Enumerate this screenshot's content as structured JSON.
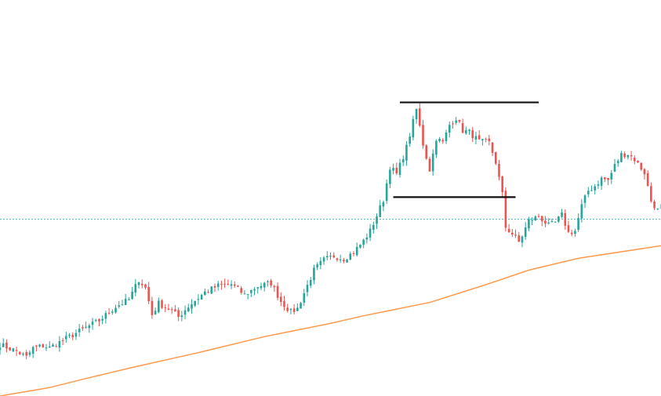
{
  "chart_data": {
    "type": "candlestick",
    "title": "",
    "xlabel": "",
    "ylabel": "",
    "grid": false,
    "legend": "none",
    "ylim": [
      0,
      100
    ],
    "colors": {
      "up": "#26a69a",
      "down": "#ef5350",
      "moving_average": "#ff9a4d",
      "reference_line": "#4fb8c4",
      "drawn_lines": "#111111",
      "background": "#ffffff"
    },
    "reference_line": {
      "value": 46.5,
      "style": "dotted"
    },
    "moving_average": [
      [
        0,
        0.0
      ],
      [
        15,
        2.2
      ],
      [
        25,
        4.4
      ],
      [
        40,
        7.5
      ],
      [
        60,
        11.4
      ],
      [
        80,
        15.6
      ],
      [
        100,
        19.1
      ],
      [
        110,
        21.1
      ],
      [
        130,
        24.6
      ],
      [
        146,
        29.0
      ],
      [
        160,
        33.1
      ],
      [
        175,
        36.2
      ],
      [
        200,
        39.5
      ]
    ],
    "drawn_lines": [
      {
        "name": "resistance",
        "x_start": 121,
        "x_end": 163,
        "value": 77.2
      },
      {
        "name": "support",
        "x_start": 119,
        "x_end": 156,
        "value": 52.3
      }
    ],
    "ohlc_keypoints": [
      [
        0,
        13.5
      ],
      [
        5,
        11.8
      ],
      [
        8,
        10.2
      ],
      [
        10,
        12.6
      ],
      [
        13,
        13.2
      ],
      [
        15,
        12.7
      ],
      [
        20,
        15.1
      ],
      [
        25,
        17.5
      ],
      [
        30,
        19.8
      ],
      [
        35,
        23.5
      ],
      [
        39,
        25.3
      ],
      [
        42,
        30.6
      ],
      [
        44,
        28.4
      ],
      [
        46,
        21.4
      ],
      [
        48,
        24.4
      ],
      [
        52,
        22.4
      ],
      [
        54,
        20.8
      ],
      [
        57,
        23.6
      ],
      [
        62,
        27.3
      ],
      [
        66,
        29.0
      ],
      [
        70,
        29.4
      ],
      [
        74,
        26.6
      ],
      [
        78,
        28.9
      ],
      [
        82,
        29.7
      ],
      [
        85,
        24.9
      ],
      [
        88,
        22.1
      ],
      [
        90,
        23.0
      ],
      [
        92,
        27.1
      ],
      [
        95,
        33.1
      ],
      [
        98,
        35.8
      ],
      [
        101,
        36.8
      ],
      [
        104,
        36.1
      ],
      [
        107,
        37.8
      ],
      [
        110,
        40.8
      ],
      [
        112,
        43.4
      ],
      [
        114,
        47.4
      ],
      [
        116,
        51.6
      ],
      [
        118,
        60.3
      ],
      [
        120,
        58.3
      ],
      [
        123,
        65.4
      ],
      [
        126,
        75.4
      ],
      [
        128,
        66.2
      ],
      [
        130,
        59.5
      ],
      [
        132,
        67.8
      ],
      [
        134,
        66.6
      ],
      [
        136,
        71.3
      ],
      [
        138,
        73.1
      ],
      [
        140,
        69.8
      ],
      [
        142,
        69.4
      ],
      [
        145,
        66.9
      ],
      [
        148,
        66.6
      ],
      [
        150,
        61.5
      ],
      [
        152,
        53.0
      ],
      [
        153,
        44.4
      ],
      [
        155,
        42.6
      ],
      [
        157,
        40.5
      ],
      [
        158,
        42.2
      ],
      [
        160,
        46.1
      ],
      [
        163,
        47.2
      ],
      [
        166,
        44.8
      ],
      [
        168,
        45.6
      ],
      [
        170,
        47.6
      ],
      [
        172,
        42.9
      ],
      [
        174,
        43.4
      ],
      [
        176,
        50.0
      ],
      [
        178,
        54.0
      ],
      [
        180,
        55.2
      ],
      [
        182,
        57.2
      ],
      [
        184,
        56.7
      ],
      [
        186,
        60.6
      ],
      [
        188,
        63.5
      ],
      [
        190,
        63.7
      ],
      [
        192,
        62.2
      ],
      [
        195,
        58.7
      ],
      [
        197,
        51.3
      ],
      [
        199,
        48.9
      ],
      [
        200,
        49.0
      ]
    ]
  }
}
